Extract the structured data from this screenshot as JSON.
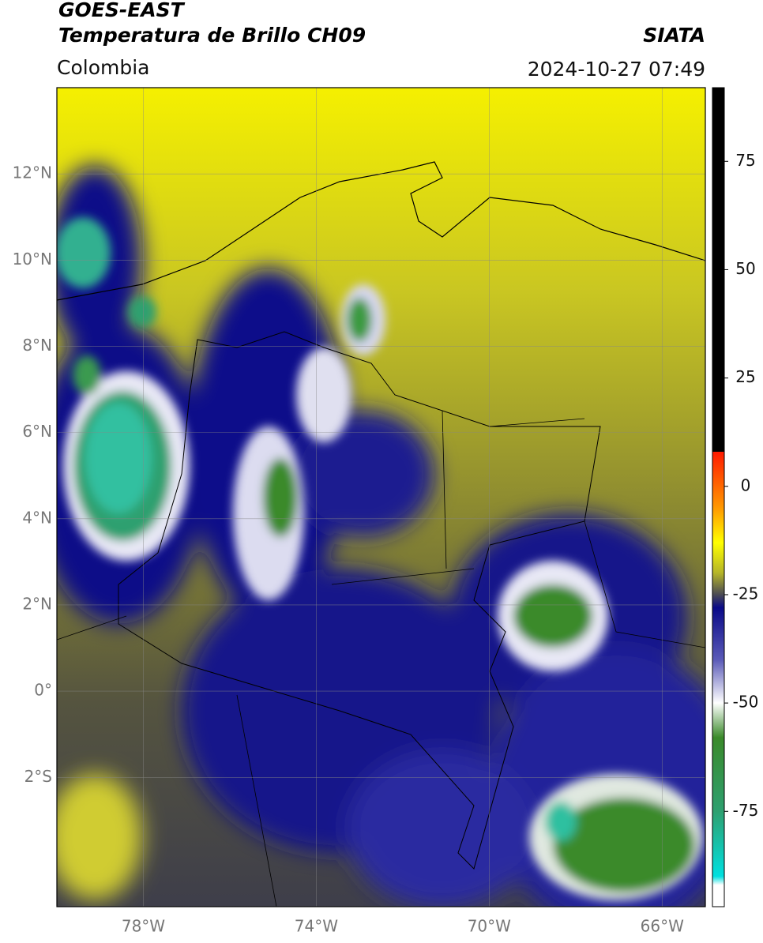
{
  "header": {
    "title": "GOES-EAST",
    "subtitle": "Temperatura de Brillo CH09",
    "source": "SIATA",
    "region": "Colombia",
    "datetime": "2024-10-27 07:49"
  },
  "map": {
    "xlim": [
      -80,
      -65
    ],
    "ylim": [
      -5,
      14
    ],
    "grid": true,
    "xticks": [
      {
        "value": -78,
        "label": "78°W"
      },
      {
        "value": -74,
        "label": "74°W"
      },
      {
        "value": -70,
        "label": "70°W"
      },
      {
        "value": -66,
        "label": "66°W"
      }
    ],
    "yticks": [
      {
        "value": 12,
        "label": "12°N"
      },
      {
        "value": 10,
        "label": "10°N"
      },
      {
        "value": 8,
        "label": "8°N"
      },
      {
        "value": 6,
        "label": "6°N"
      },
      {
        "value": 4,
        "label": "4°N"
      },
      {
        "value": 2,
        "label": "2°N"
      },
      {
        "value": 0,
        "label": "0°"
      },
      {
        "value": -2,
        "label": "2°S"
      }
    ]
  },
  "colorbar": {
    "lim": [
      -97,
      92
    ],
    "ticks": [
      75,
      50,
      25,
      0,
      -25,
      -50,
      -75
    ],
    "stops": [
      [
        92,
        "#000000"
      ],
      [
        8,
        "#000000"
      ],
      [
        8,
        "#ff1a00"
      ],
      [
        -5,
        "#ff9900"
      ],
      [
        -13,
        "#ffff00"
      ],
      [
        -20,
        "#b5b528"
      ],
      [
        -25,
        "#4a4a55"
      ],
      [
        -28,
        "#0a0a88"
      ],
      [
        -40,
        "#5a5ab8"
      ],
      [
        -50,
        "#ffffff"
      ],
      [
        -58,
        "#3a8a2a"
      ],
      [
        -75,
        "#2ea070"
      ],
      [
        -90,
        "#00e0e0"
      ],
      [
        -92,
        "#ffffff"
      ],
      [
        -97,
        "#ffffff"
      ]
    ]
  }
}
